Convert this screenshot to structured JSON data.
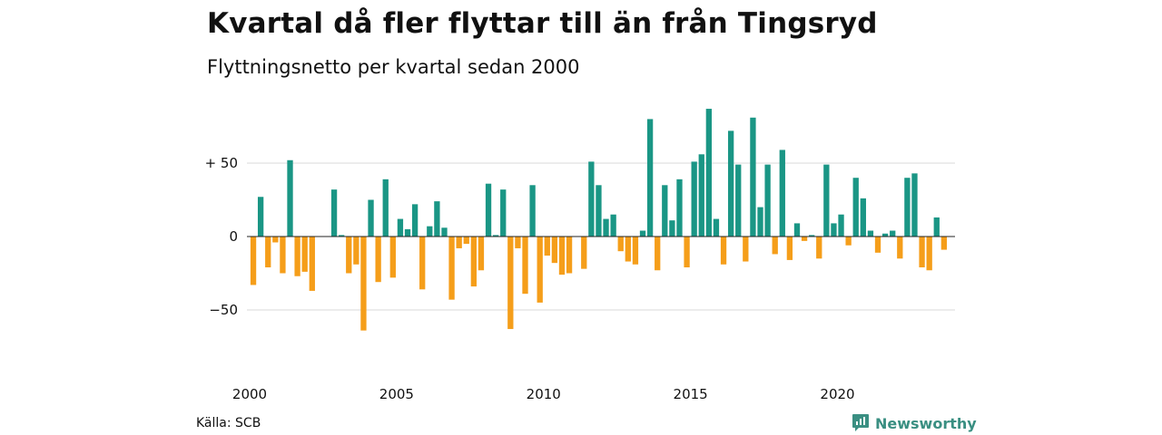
{
  "title": "Kvartal då fler flyttar till än från Tingsryd",
  "subtitle": "Flyttningsnetto per kvartal sedan 2000",
  "source": "Källa: SCB",
  "brand": {
    "name": "Newsworthy",
    "icon": "newsworthy-logo-icon"
  },
  "colors": {
    "positive": "#1a9685",
    "negative": "#f59e1a",
    "grid": "#d9d9d9",
    "zero": "#222222"
  },
  "chart_data": {
    "type": "bar",
    "title": "Kvartal då fler flyttar till än från Tingsryd",
    "subtitle": "Flyttningsnetto per kvartal sedan 2000",
    "xlabel": "",
    "ylabel": "",
    "ylim": [
      -75,
      90
    ],
    "yticks": [
      {
        "value": 50,
        "label": "+ 50"
      },
      {
        "value": 0,
        "label": "0"
      },
      {
        "value": -50,
        "label": "−50"
      }
    ],
    "xticks": [
      "2000",
      "2005",
      "2010",
      "2015",
      "2020"
    ],
    "grid": "horizontal",
    "categories": [
      "2000K1",
      "2000K2",
      "2000K3",
      "2000K4",
      "2001K1",
      "2001K2",
      "2001K3",
      "2001K4",
      "2002K1",
      "2002K2",
      "2002K3",
      "2002K4",
      "2003K1",
      "2003K2",
      "2003K3",
      "2003K4",
      "2004K1",
      "2004K2",
      "2004K3",
      "2004K4",
      "2005K1",
      "2005K2",
      "2005K3",
      "2005K4",
      "2006K1",
      "2006K2",
      "2006K3",
      "2006K4",
      "2007K1",
      "2007K2",
      "2007K3",
      "2007K4",
      "2008K1",
      "2008K2",
      "2008K3",
      "2008K4",
      "2009K1",
      "2009K2",
      "2009K3",
      "2009K4",
      "2010K1",
      "2010K2",
      "2010K3",
      "2010K4",
      "2011K1",
      "2011K2",
      "2011K3",
      "2011K4",
      "2012K1",
      "2012K2",
      "2012K3",
      "2012K4",
      "2013K1",
      "2013K2",
      "2013K3",
      "2013K4",
      "2014K1",
      "2014K2",
      "2014K3",
      "2014K4",
      "2015K1",
      "2015K2",
      "2015K3",
      "2015K4",
      "2016K1",
      "2016K2",
      "2016K3",
      "2016K4",
      "2017K1",
      "2017K2",
      "2017K3",
      "2017K4",
      "2018K1",
      "2018K2",
      "2018K3",
      "2018K4",
      "2019K1",
      "2019K2",
      "2019K3",
      "2019K4",
      "2020K1",
      "2020K2",
      "2020K3",
      "2020K4",
      "2021K1",
      "2021K2",
      "2021K3",
      "2021K4",
      "2022K1",
      "2022K2",
      "2022K3",
      "2022K4",
      "2023K1",
      "2023K2",
      "2023K3",
      "2023K4"
    ],
    "values": [
      -33,
      27,
      -21,
      -4,
      -25,
      52,
      -27,
      -24,
      -37,
      0,
      0,
      32,
      1,
      -25,
      -19,
      -64,
      25,
      -31,
      39,
      -28,
      12,
      5,
      22,
      -36,
      7,
      24,
      6,
      -43,
      -8,
      -5,
      -34,
      -23,
      36,
      1,
      32,
      -63,
      -8,
      -39,
      35,
      -45,
      -13,
      -18,
      -26,
      -25,
      0,
      -22,
      51,
      35,
      12,
      15,
      -10,
      -17,
      -19,
      4,
      80,
      -23,
      35,
      11,
      39,
      -21,
      51,
      56,
      87,
      12,
      -19,
      72,
      49,
      -17,
      81,
      20,
      49,
      -12,
      59,
      -16,
      9,
      -3,
      1,
      -15,
      49,
      9,
      15,
      -6,
      40,
      26,
      4,
      -11,
      2,
      4,
      -15,
      40,
      43,
      -21,
      -23,
      13,
      -9,
      0
    ]
  }
}
